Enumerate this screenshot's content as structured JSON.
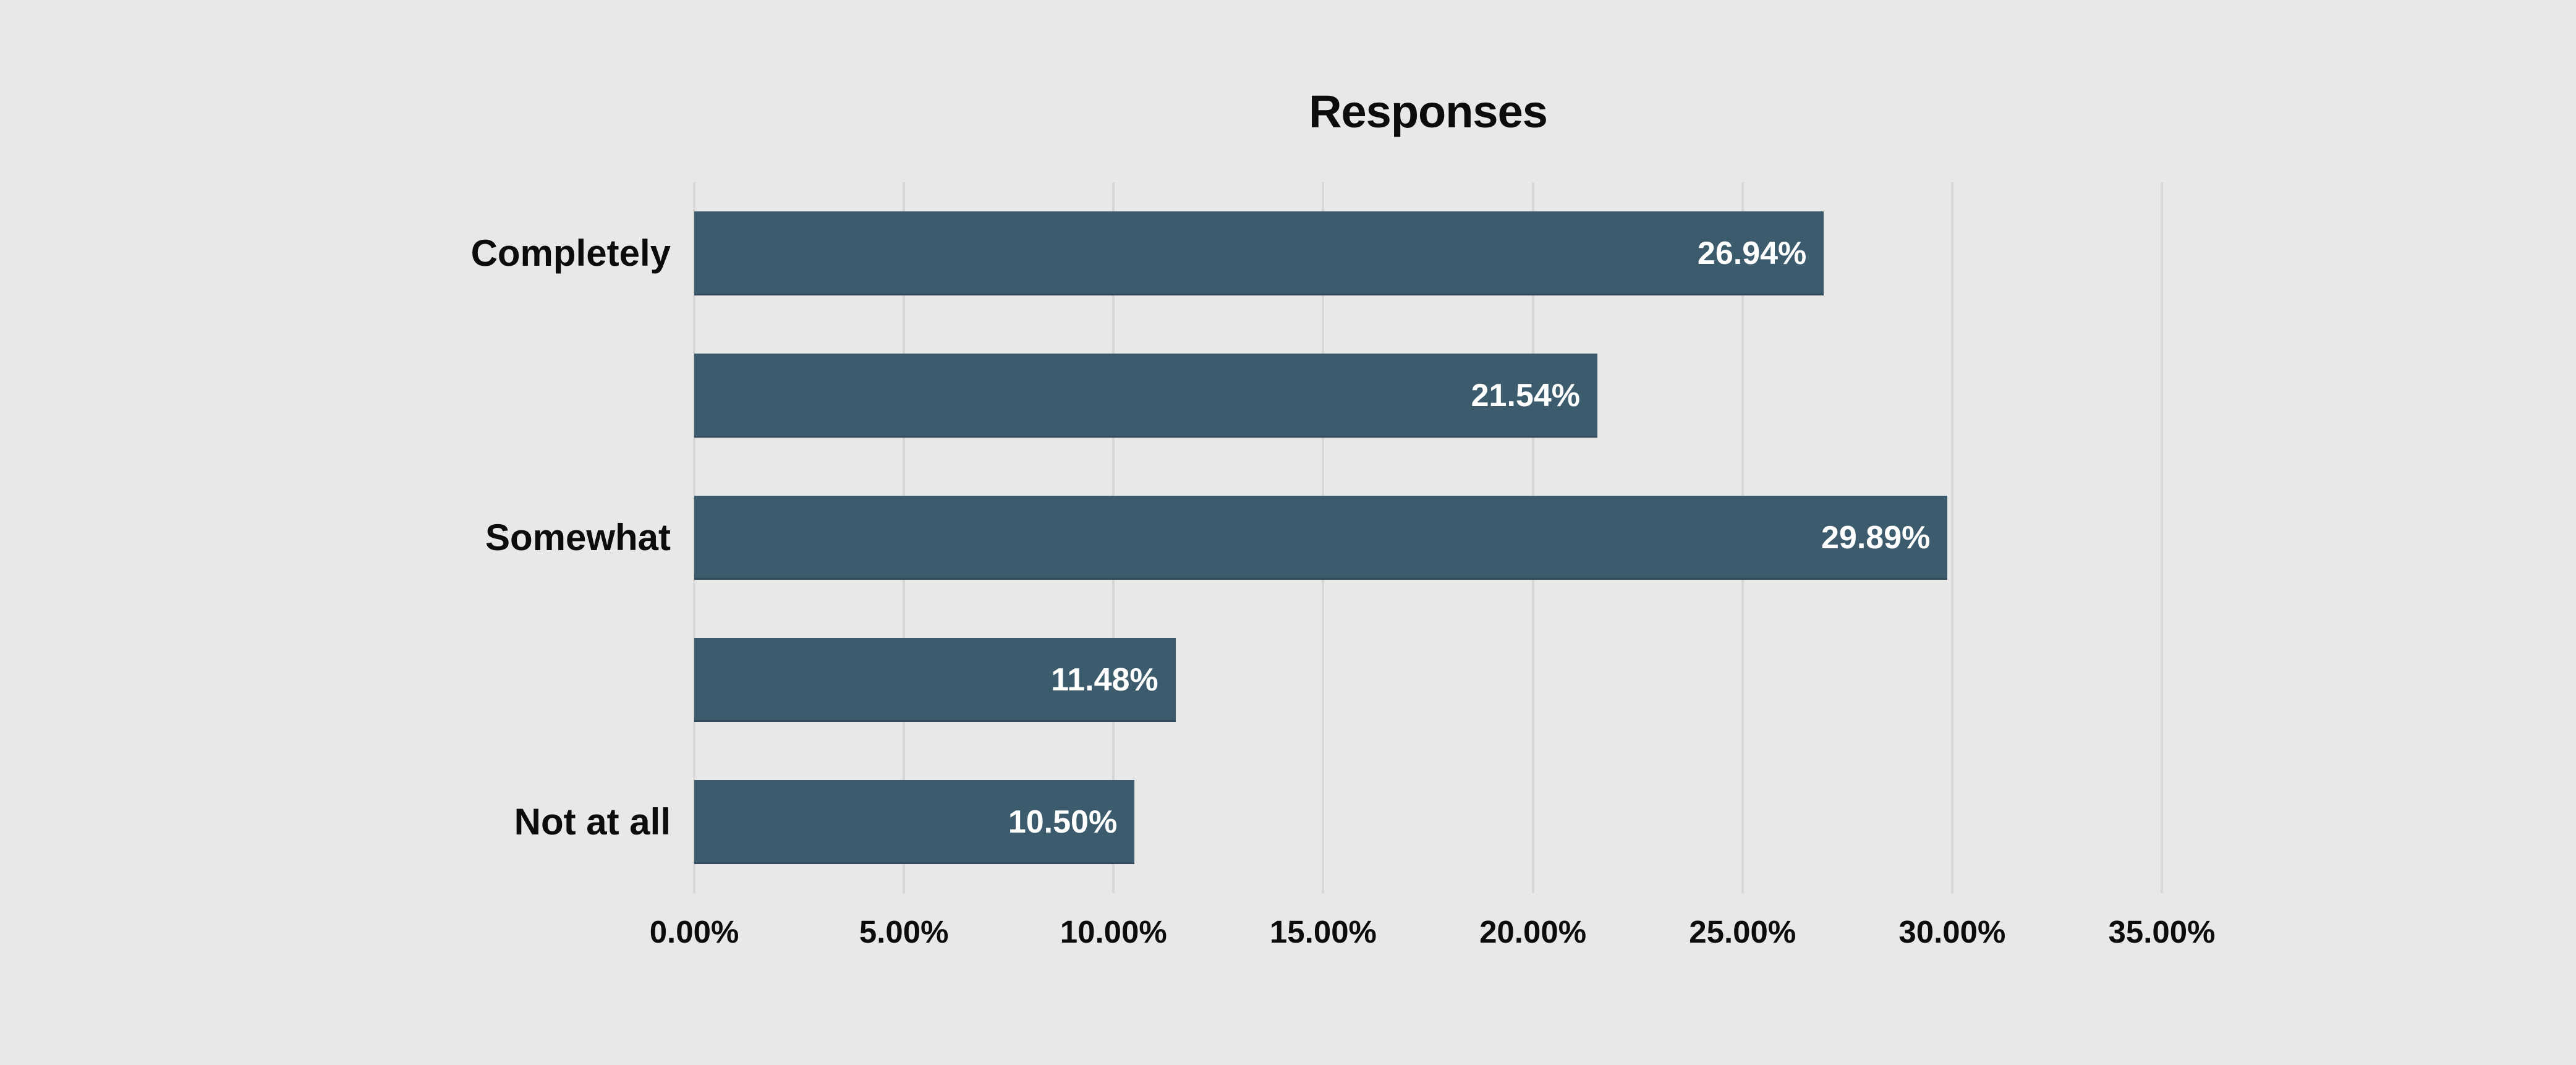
{
  "page": {
    "background_color": "#e8e8e8"
  },
  "chart_data": {
    "type": "bar",
    "orientation": "horizontal",
    "title": "Responses",
    "categories": [
      "Completely",
      "",
      "Somewhat",
      "",
      "Not at all"
    ],
    "values": [
      26.94,
      21.54,
      29.89,
      11.48,
      10.5
    ],
    "value_labels": [
      "26.94%",
      "21.54%",
      "29.89%",
      "11.48%",
      "10.50%"
    ],
    "xlim": [
      0,
      35
    ],
    "x_ticks": [
      0,
      5,
      10,
      15,
      20,
      25,
      30,
      35
    ],
    "x_tick_labels": [
      "0.00%",
      "5.00%",
      "10.00%",
      "15.00%",
      "20.00%",
      "25.00%",
      "30.00%",
      "35.00%"
    ],
    "xlabel": "",
    "ylabel": "",
    "bar_color": "#3c5c6e",
    "value_label_color": "#ffffff",
    "grid": true,
    "gridline_color": "#d7d7d8",
    "legend_position": "none"
  }
}
